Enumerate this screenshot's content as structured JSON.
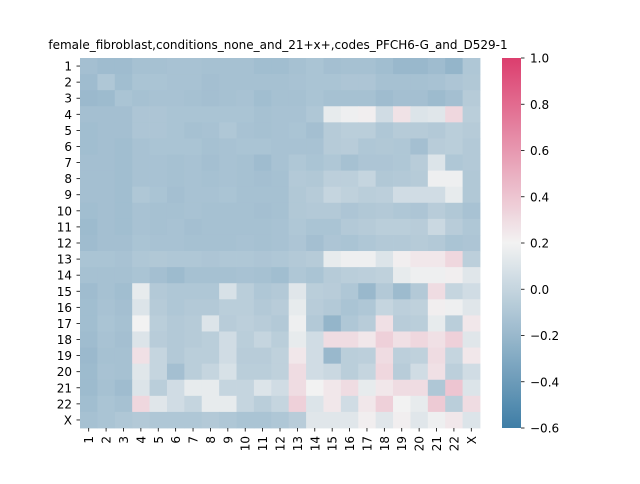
{
  "chart_data": {
    "type": "heatmap",
    "title": "female_fibroblast,conditions_none_and_21+x+,codes_PFCH6-G_and_D529-1",
    "xlabel": "",
    "ylabel": "",
    "rows": [
      "1",
      "2",
      "3",
      "4",
      "5",
      "6",
      "7",
      "8",
      "9",
      "10",
      "11",
      "12",
      "13",
      "14",
      "15",
      "16",
      "17",
      "18",
      "19",
      "20",
      "21",
      "22",
      "X"
    ],
    "columns": [
      "1",
      "2",
      "3",
      "4",
      "5",
      "6",
      "7",
      "8",
      "9",
      "10",
      "11",
      "12",
      "13",
      "14",
      "15",
      "16",
      "17",
      "18",
      "19",
      "20",
      "21",
      "22",
      "X"
    ],
    "colorbar": {
      "min": -0.6,
      "max": 1.0,
      "ticks": [
        -0.6,
        -0.4,
        -0.2,
        0.0,
        0.2,
        0.4,
        0.6,
        0.8,
        1.0
      ],
      "tick_labels": [
        "−0.6",
        "−0.4",
        "−0.2",
        "0.0",
        "0.2",
        "0.4",
        "0.6",
        "0.8",
        "1.0"
      ],
      "colors": {
        "low": "#3f7ea6",
        "mid": "#f2f2f2",
        "high": "#dc3e6e"
      }
    },
    "values": [
      [
        -0.15,
        -0.17,
        -0.17,
        -0.14,
        -0.14,
        -0.13,
        -0.13,
        -0.14,
        -0.14,
        -0.14,
        -0.16,
        -0.16,
        -0.14,
        -0.12,
        -0.15,
        -0.14,
        -0.14,
        -0.16,
        -0.2,
        -0.2,
        -0.17,
        -0.22,
        -0.1
      ],
      [
        -0.17,
        -0.1,
        -0.16,
        -0.12,
        -0.12,
        -0.13,
        -0.13,
        -0.15,
        -0.14,
        -0.14,
        -0.14,
        -0.14,
        -0.13,
        -0.12,
        -0.12,
        -0.11,
        -0.11,
        -0.14,
        -0.14,
        -0.14,
        -0.13,
        -0.11,
        -0.09
      ],
      [
        -0.19,
        -0.18,
        -0.12,
        -0.14,
        -0.13,
        -0.13,
        -0.14,
        -0.15,
        -0.14,
        -0.13,
        -0.16,
        -0.14,
        -0.14,
        -0.12,
        -0.14,
        -0.14,
        -0.14,
        -0.17,
        -0.15,
        -0.15,
        -0.18,
        -0.15,
        -0.07
      ],
      [
        -0.15,
        -0.15,
        -0.15,
        -0.11,
        -0.11,
        -0.12,
        -0.12,
        -0.12,
        -0.12,
        -0.12,
        -0.14,
        -0.13,
        -0.13,
        -0.1,
        0.15,
        0.18,
        0.22,
        0.05,
        0.27,
        0.1,
        0.12,
        0.32,
        -0.05
      ],
      [
        -0.16,
        -0.15,
        -0.15,
        -0.11,
        -0.11,
        -0.12,
        -0.14,
        -0.13,
        -0.1,
        -0.13,
        -0.14,
        -0.13,
        -0.12,
        -0.15,
        -0.07,
        -0.05,
        -0.05,
        -0.1,
        -0.07,
        -0.07,
        -0.08,
        -0.05,
        -0.07
      ],
      [
        -0.16,
        -0.15,
        -0.16,
        -0.13,
        -0.12,
        -0.12,
        -0.12,
        -0.14,
        -0.13,
        -0.12,
        -0.12,
        -0.13,
        -0.13,
        -0.13,
        -0.07,
        -0.06,
        -0.1,
        -0.09,
        -0.1,
        -0.15,
        -0.06,
        -0.05,
        -0.08
      ],
      [
        -0.15,
        -0.15,
        -0.16,
        -0.13,
        -0.13,
        -0.14,
        -0.13,
        -0.15,
        -0.13,
        -0.14,
        -0.17,
        -0.13,
        -0.1,
        -0.12,
        -0.1,
        -0.14,
        -0.11,
        -0.11,
        -0.1,
        -0.06,
        0.1,
        -0.1,
        -0.08
      ],
      [
        -0.15,
        -0.15,
        -0.16,
        -0.13,
        -0.13,
        -0.14,
        -0.13,
        -0.14,
        -0.13,
        -0.14,
        -0.15,
        -0.14,
        -0.08,
        -0.09,
        -0.04,
        -0.04,
        0.0,
        -0.09,
        -0.08,
        -0.07,
        0.18,
        0.18,
        -0.09
      ],
      [
        -0.15,
        -0.15,
        -0.16,
        -0.1,
        -0.12,
        -0.15,
        -0.13,
        -0.13,
        -0.12,
        -0.14,
        -0.14,
        -0.14,
        -0.09,
        -0.07,
        0.0,
        -0.03,
        -0.05,
        -0.04,
        0.05,
        0.05,
        0.05,
        0.15,
        -0.09
      ],
      [
        -0.16,
        -0.15,
        -0.16,
        -0.13,
        -0.14,
        -0.14,
        -0.13,
        -0.14,
        -0.14,
        -0.14,
        -0.15,
        -0.14,
        -0.09,
        -0.08,
        -0.08,
        -0.11,
        -0.09,
        -0.08,
        -0.1,
        -0.11,
        -0.06,
        -0.09,
        -0.13
      ],
      [
        -0.18,
        -0.15,
        -0.16,
        -0.13,
        -0.14,
        -0.13,
        -0.15,
        -0.14,
        -0.14,
        -0.14,
        -0.14,
        -0.13,
        -0.1,
        -0.12,
        -0.12,
        -0.08,
        -0.07,
        -0.05,
        -0.05,
        -0.06,
        0.02,
        -0.06,
        -0.1
      ],
      [
        -0.17,
        -0.15,
        -0.15,
        -0.12,
        -0.13,
        -0.13,
        -0.14,
        -0.14,
        -0.14,
        -0.13,
        -0.14,
        -0.13,
        -0.11,
        -0.15,
        -0.11,
        -0.12,
        -0.1,
        -0.08,
        -0.08,
        -0.07,
        -0.08,
        -0.12,
        -0.11
      ],
      [
        -0.12,
        -0.12,
        -0.13,
        -0.1,
        -0.09,
        -0.1,
        -0.1,
        -0.11,
        -0.1,
        -0.1,
        -0.11,
        -0.1,
        -0.08,
        -0.07,
        0.15,
        0.18,
        0.18,
        0.1,
        0.22,
        0.25,
        0.25,
        0.32,
        -0.04
      ],
      [
        -0.14,
        -0.14,
        -0.14,
        -0.12,
        -0.15,
        -0.18,
        -0.14,
        -0.14,
        -0.14,
        -0.13,
        -0.14,
        -0.16,
        -0.1,
        -0.12,
        -0.07,
        -0.05,
        -0.04,
        -0.03,
        0.15,
        0.18,
        0.18,
        0.22,
        0.12
      ],
      [
        -0.17,
        -0.14,
        -0.16,
        0.15,
        -0.08,
        -0.1,
        -0.1,
        -0.1,
        0.08,
        -0.05,
        -0.1,
        -0.08,
        0.12,
        -0.05,
        -0.06,
        -0.1,
        -0.2,
        -0.08,
        -0.18,
        -0.08,
        0.3,
        0.0,
        0.05
      ],
      [
        -0.16,
        -0.13,
        -0.15,
        0.1,
        -0.07,
        -0.1,
        -0.08,
        -0.08,
        -0.05,
        -0.05,
        -0.08,
        -0.06,
        0.15,
        -0.06,
        -0.08,
        -0.12,
        -0.1,
        0.0,
        -0.04,
        -0.03,
        0.22,
        0.18,
        0.12
      ],
      [
        -0.16,
        -0.12,
        -0.14,
        0.2,
        -0.05,
        -0.08,
        -0.07,
        0.1,
        -0.06,
        -0.04,
        -0.06,
        -0.08,
        0.18,
        -0.08,
        -0.22,
        -0.1,
        -0.06,
        0.28,
        -0.06,
        -0.05,
        0.15,
        -0.05,
        0.25
      ],
      [
        -0.17,
        -0.13,
        -0.15,
        0.1,
        -0.06,
        -0.08,
        -0.07,
        -0.05,
        0.05,
        -0.05,
        0.0,
        -0.05,
        0.15,
        0.05,
        0.3,
        0.3,
        0.25,
        0.35,
        0.28,
        0.32,
        0.28,
        0.35,
        0.12
      ],
      [
        -0.19,
        -0.14,
        -0.14,
        0.28,
        0.0,
        -0.08,
        -0.05,
        -0.05,
        0.05,
        -0.06,
        -0.06,
        -0.03,
        0.25,
        0.05,
        -0.2,
        -0.05,
        -0.04,
        0.3,
        -0.04,
        -0.03,
        0.3,
        0.0,
        0.25
      ],
      [
        -0.18,
        -0.13,
        -0.14,
        0.12,
        0.0,
        -0.15,
        -0.05,
        0.0,
        0.08,
        -0.05,
        -0.05,
        -0.03,
        0.3,
        0.05,
        0.02,
        -0.05,
        0.0,
        0.32,
        -0.06,
        0.05,
        0.28,
        -0.04,
        0.05
      ],
      [
        -0.18,
        -0.14,
        -0.17,
        0.1,
        -0.05,
        0.05,
        0.15,
        0.15,
        0.0,
        0.0,
        0.1,
        0.05,
        0.3,
        0.2,
        0.25,
        0.3,
        0.15,
        0.25,
        0.3,
        0.3,
        -0.1,
        0.4,
        0.1
      ],
      [
        -0.16,
        -0.12,
        -0.14,
        0.32,
        0.12,
        0.05,
        0.0,
        0.15,
        0.15,
        0.0,
        -0.05,
        0.0,
        0.35,
        0.1,
        0.25,
        0.05,
        0.25,
        0.35,
        0.2,
        0.15,
        0.38,
        -0.05,
        0.3
      ],
      [
        -0.14,
        -0.12,
        -0.1,
        -0.08,
        -0.1,
        -0.1,
        -0.1,
        -0.08,
        -0.1,
        -0.12,
        -0.12,
        -0.1,
        -0.06,
        0.12,
        0.12,
        0.12,
        0.22,
        0.12,
        0.22,
        0.12,
        0.18,
        0.25,
        0.1
      ]
    ]
  }
}
